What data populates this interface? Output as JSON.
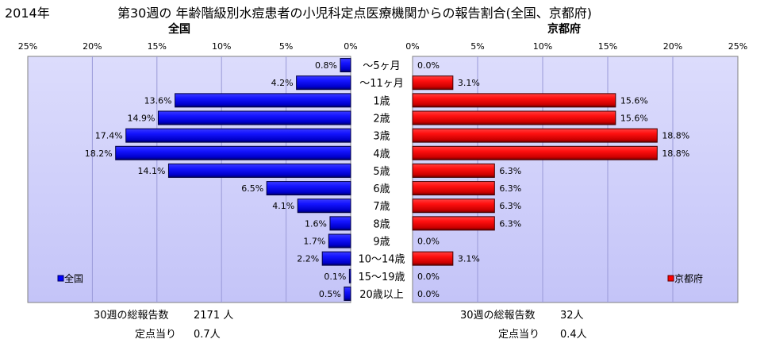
{
  "header": {
    "year": "2014年",
    "title": "第30週の  年齢階級別水痘患者の小児科定点医療機関からの報告割合(全国、京都府)"
  },
  "chart_data": [
    {
      "type": "bar",
      "orientation": "horizontal",
      "panel_title": "全国",
      "legend": "全国",
      "legend_position": "bottom-left",
      "color": "#0000ff",
      "xlim": [
        0,
        25
      ],
      "x_direction": "reversed",
      "ticks": [
        "25%",
        "20%",
        "15%",
        "10%",
        "5%",
        "0%"
      ],
      "categories": [
        "～5ヶ月",
        "～11ヶ月",
        "1歳",
        "2歳",
        "3歳",
        "4歳",
        "5歳",
        "6歳",
        "7歳",
        "8歳",
        "9歳",
        "10～14歳",
        "15～19歳",
        "20歳以上"
      ],
      "values": [
        0.8,
        4.2,
        13.6,
        14.9,
        17.4,
        18.2,
        14.1,
        6.5,
        4.1,
        1.6,
        1.7,
        2.2,
        0.1,
        0.5
      ],
      "labels": [
        "0.8%",
        "4.2%",
        "13.6%",
        "14.9%",
        "17.4%",
        "18.2%",
        "14.1%",
        "6.5%",
        "4.1%",
        "1.6%",
        "1.7%",
        "2.2%",
        "0.1%",
        "0.5%"
      ],
      "grid": true
    },
    {
      "type": "bar",
      "orientation": "horizontal",
      "panel_title": "京都府",
      "legend": "京都府",
      "legend_position": "bottom-right",
      "color": "#ff0000",
      "xlim": [
        0,
        25
      ],
      "ticks": [
        "0%",
        "5%",
        "10%",
        "15%",
        "20%",
        "25%"
      ],
      "categories": [
        "～5ヶ月",
        "～11ヶ月",
        "1歳",
        "2歳",
        "3歳",
        "4歳",
        "5歳",
        "6歳",
        "7歳",
        "8歳",
        "9歳",
        "10～14歳",
        "15～19歳",
        "20歳以上"
      ],
      "values": [
        0.0,
        3.1,
        15.6,
        15.6,
        18.8,
        18.8,
        6.3,
        6.3,
        6.3,
        6.3,
        0.0,
        3.1,
        0.0,
        0.0
      ],
      "labels": [
        "0.0%",
        "3.1%",
        "15.6%",
        "15.6%",
        "18.8%",
        "18.8%",
        "6.3%",
        "6.3%",
        "6.3%",
        "6.3%",
        "0.0%",
        "3.1%",
        "0.0%",
        "0.0%"
      ],
      "grid": true
    }
  ],
  "footer": {
    "left": {
      "total_label": "30週の総報告数",
      "total_value": "2171 人",
      "per_label": "定点当り",
      "per_value": "0.7人"
    },
    "right": {
      "total_label": "30週の総報告数",
      "total_value": "32人",
      "per_label": "定点当り",
      "per_value": "0.4人"
    }
  }
}
